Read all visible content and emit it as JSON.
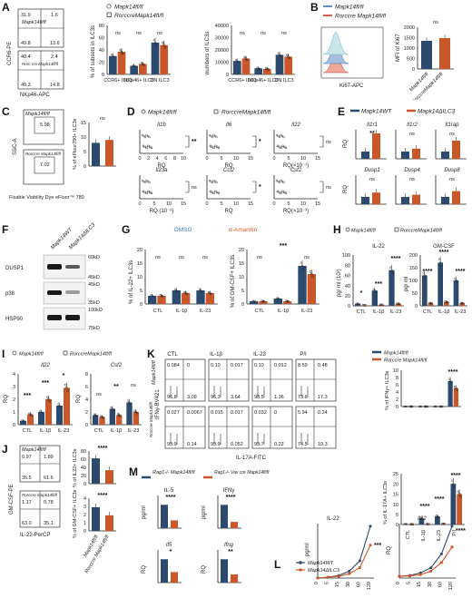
{
  "colors": {
    "ctl": "#2c4a6e",
    "ko": "#c9572a",
    "ctl_light": "#6d8fb8",
    "hist_blue": "#7a9cc6",
    "hist_red": "#d98a7a",
    "hist_ko": "#9fd0d8",
    "dmso": "#3b7dc4",
    "amanitin": "#d85a2a"
  },
  "panels": {
    "A": {
      "label": "A",
      "flow": {
        "yaxis": "CCR6-PE",
        "xaxis": "NKp46-APC",
        "top": {
          "name": "Mapk14fl/fl",
          "q_tl": "31.9",
          "q_tr": "1.6",
          "q_bl": "49.8",
          "q_br": "13.6"
        },
        "bottom": {
          "name": "Rorc cre Mapk14fl/fl",
          "q_tl": "40.4",
          "q_tr": "2.4",
          "q_bl": "40.3",
          "q_br": "14.8"
        }
      },
      "legend": [
        "Mapk14fl/fl",
        "RorccreMapk14fl/fl"
      ],
      "chart1": {
        "ylabel": "% of subsets in ILC3s",
        "yticks": [
          "0",
          "20",
          "40",
          "60",
          "80"
        ],
        "cats": [
          "CCR6+ ILC3",
          "NKp46+ ILC3",
          "DN ILC3"
        ],
        "sig": [
          "ns",
          "ns",
          "ns"
        ]
      },
      "chart2": {
        "ylabel": "numbers of ILC3s",
        "yticks": [
          "0",
          "10000",
          "20000",
          "30000",
          "40000"
        ],
        "cats": [
          "CCR6+ ILC3",
          "NKp46+ ILC3",
          "DN ILC3"
        ],
        "sig": [
          "ns",
          "ns",
          "ns"
        ]
      }
    },
    "B": {
      "label": "B",
      "legend": [
        "Mapk14fl/fl",
        "Rorccre Mapk14fl/fl"
      ],
      "xaxis": "Ki67-APC",
      "ylabel": "MFI of Ki67",
      "yticks": [
        "0",
        "500",
        "1000",
        "1500",
        "2000"
      ],
      "sig": "ns",
      "xcats": [
        "Mapk14fl/fl",
        "RorccreMapk14fl/fl"
      ]
    },
    "C": {
      "label": "C",
      "top_name": "Mapk14fl/fl",
      "top_val": "5.98",
      "bottom_name": "Rorccre Mapk14fl/fl",
      "bottom_val": "7.02",
      "yaxis": "SSC-A",
      "xaxis": "Fixable Viability Dye eFluor™ 780",
      "ylabel": "% of eFlour780+ ILC3s",
      "yticks": [
        "0",
        "5",
        "10",
        "15"
      ],
      "sig": "ns"
    },
    "D": {
      "label": "D",
      "legend": [
        "Mapk14fl/fl",
        "RorccreMapk14fl/fl"
      ],
      "genes": [
        {
          "name": "Il1b",
          "x": "RQ",
          "sig": "**"
        },
        {
          "name": "Il6",
          "x": "RQ",
          "sig": "*"
        },
        {
          "name": "Il22",
          "x": "RQ(×10⁻¹)",
          "sig": "ns"
        },
        {
          "name": "Il23a",
          "x": "RQ (10⁻²)",
          "sig": "ns"
        },
        {
          "name": "Ccl2",
          "x": "RQ",
          "sig": "*"
        },
        {
          "name": "Csf2",
          "x": "RQ(×10⁻³)",
          "sig": "ns"
        }
      ],
      "ticks1": [
        "0",
        "2",
        "4",
        "6",
        "8",
        "10"
      ],
      "ticks2": [
        "0",
        "5",
        "10",
        "15"
      ]
    },
    "E": {
      "label": "E",
      "legend": [
        "Mapk14WT",
        "Mapk14ΔILC3"
      ],
      "genes": [
        {
          "name": "Il1r1",
          "sig": "**"
        },
        {
          "name": "Il1r2",
          "sig": "ns"
        },
        {
          "name": "Il1rap",
          "sig": "ns"
        },
        {
          "name": "Dusp1",
          "sig": "ns"
        },
        {
          "name": "Dusp4",
          "sig": "ns"
        },
        {
          "name": "Dusp8",
          "sig": "ns"
        }
      ],
      "ylabel": "RQ"
    },
    "F": {
      "label": "F",
      "lanes": [
        "Mapk14WT",
        "Mapk14ΔILC3"
      ],
      "rows": [
        "DUSP1",
        "p38",
        "HSP90"
      ],
      "markers": [
        "60kD",
        "45kD",
        "45kD",
        "35kD",
        "100kD",
        "75kD"
      ]
    },
    "G": {
      "label": "G",
      "legend": [
        "DMSO",
        "α-Amanitin"
      ],
      "chart1": {
        "ylabel": "% of IL-22+ ILC3s",
        "yticks": [
          "0",
          "5",
          "10",
          "15",
          "20"
        ],
        "cats": [
          "CTL",
          "IL-1β",
          "IL-23"
        ],
        "sig": [
          "ns",
          "ns",
          "ns"
        ]
      },
      "chart2": {
        "ylabel": "% of GM-CSF+ ILC3s",
        "yticks": [
          "0",
          "5",
          "10",
          "15",
          "20"
        ],
        "cats": [
          "CTL",
          "IL-1β",
          "IL-23"
        ],
        "sig": [
          "ns",
          "***",
          "ns"
        ]
      }
    },
    "H": {
      "label": "H",
      "legend": [
        "Mapk14fl/fl",
        "RorccreMapk14fl/fl"
      ],
      "chart1": {
        "title": "IL-22",
        "ylabel": "pg/ ml (10²)",
        "yticks": [
          "0",
          "20",
          "40",
          "60",
          "80",
          "100"
        ],
        "cats": [
          "CTL",
          "IL-1β",
          "IL-23"
        ],
        "sig": [
          "*",
          "***",
          "****"
        ]
      },
      "chart2": {
        "title": "GM-CSF",
        "ylabel": "pg/ ml",
        "yticks": [
          "0",
          "50",
          "100",
          "150",
          "200"
        ],
        "cats": [
          "CTL",
          "IL-1β",
          "IL-23"
        ],
        "sig": [
          "****",
          "****",
          "****"
        ]
      }
    },
    "I": {
      "label": "I",
      "legend": [
        "Mapk14fl/fl",
        "RorccreMapk14fl/fl"
      ],
      "chart1": {
        "title": "Il22",
        "ylabel": "RQ",
        "yticks": [
          "0",
          "1",
          "2",
          "3",
          "4"
        ],
        "cats": [
          "CTL",
          "IL-1β",
          "IL-23"
        ],
        "sig": [
          "***",
          "***",
          "*"
        ]
      },
      "chart2": {
        "title": "Csf2",
        "ylabel": "RQ",
        "yticks": [
          "0",
          "2",
          "4",
          "6",
          "8"
        ],
        "cats": [
          "CTL",
          "IL-1β",
          "IL-23"
        ],
        "sig": [
          "ns",
          "**",
          "ns"
        ]
      }
    },
    "J": {
      "label": "J",
      "top_name": "Mapk14fl/fl",
      "bottom_name": "Rorccre Mapk14fl/fl",
      "yaxis": "GM-CSF-PE",
      "xaxis": "IL-22-PerCP",
      "top_q": [
        "0.97",
        "1.89",
        "35.5",
        "61.6"
      ],
      "bottom_q": [
        "1.17",
        "0.78",
        "63.0",
        "35.1"
      ],
      "chart1": {
        "ylabel": "% of IL22+ ILC3s",
        "yticks": [
          "0",
          "20",
          "40",
          "60",
          "80"
        ],
        "sig": "****"
      },
      "chart2": {
        "ylabel": "% of GM-CSF+ ILC3s",
        "yticks": [
          "0",
          "1",
          "2",
          "3",
          "4"
        ],
        "sig": "****"
      },
      "xcats": [
        "Mapk14fl/fl",
        "Rorccre Mapk14fl/fl"
      ]
    },
    "K": {
      "label": "K",
      "cols": [
        "CTL",
        "IL-1β",
        "IL-23",
        "P/I"
      ],
      "row1": "Mapk14fl/fl",
      "row2": "Rorccre Mapk14fl/fl",
      "yaxis": "IFNγ-BV421",
      "xaxis": "IL-17A-FITC",
      "q1": [
        [
          "0.084",
          "0",
          "96.8",
          "3.09"
        ],
        [
          "0.10",
          "0.017",
          "96.2",
          "3.64"
        ],
        [
          "0.10",
          "0.012",
          "98.5",
          "1.36"
        ],
        [
          "8.59",
          "0.48",
          "73.6",
          "17.3"
        ]
      ],
      "q2": [
        [
          "0.027",
          "0.0067",
          "99.9",
          "0.14"
        ],
        [
          "0.015",
          "0.017",
          "99.9",
          "0.052"
        ],
        [
          "0.032",
          "0",
          "99.7",
          "0.22"
        ],
        [
          "5.94",
          "0.24",
          "74.5",
          "19.3"
        ]
      ],
      "legend": [
        "Mapk14fl/fl",
        "Rorccre Mapk14fl/fl"
      ],
      "chart1": {
        "ylabel": "% of IFNγ+ ILC3s",
        "yticks": [
          "0",
          "2",
          "4",
          "6",
          "8",
          "10"
        ],
        "sig": "****"
      },
      "chart2": {
        "ylabel": "% of IL-17A+ ILC3s",
        "yticks": [
          "0",
          "5",
          "10",
          "15",
          "20",
          "25"
        ],
        "cats": [
          "CTL",
          "IL-1β",
          "IL-23",
          "P/I"
        ],
        "sig": [
          "****",
          "****",
          "****"
        ]
      }
    },
    "L": {
      "label": "L",
      "legend": [
        "Mapk14WT",
        "Mapk14ΔILC3"
      ],
      "chart1": {
        "title": "IL-22",
        "ylabel": "pg/ml",
        "xticks": [
          "0",
          "5",
          "15",
          "30",
          "60",
          "120"
        ],
        "sig": "***"
      },
      "chart2": {
        "title": "Il22",
        "ylabel": "RQ",
        "xticks": [
          "0",
          "5",
          "15",
          "30",
          "60",
          "120"
        ],
        "sig": "****"
      }
    },
    "M": {
      "label": "M",
      "legend": [
        "Rag1-/- Mapk14fl/fl",
        "Rag1-/- Vav cre Mapk14fl/fl"
      ],
      "charts": [
        {
          "title": "IL-5",
          "ylabel": "pg/ml",
          "sig": "****"
        },
        {
          "title": "IFNγ",
          "ylabel": "pg/ml",
          "sig": "****"
        },
        {
          "title": "Il5",
          "ylabel": "RQ",
          "sig": "*"
        },
        {
          "title": "Ifng",
          "ylabel": "RQ",
          "sig": "**"
        }
      ]
    }
  },
  "chart_data": [
    {
      "panel": "A-left",
      "type": "bar",
      "categories": [
        "CCR6+ ILC3",
        "NKp46+ ILC3",
        "DN ILC3"
      ],
      "series": [
        {
          "name": "Mapk14fl/fl",
          "values": [
            30,
            14,
            52
          ]
        },
        {
          "name": "RorccreMapk14fl/fl",
          "values": [
            37,
            17,
            48
          ]
        }
      ],
      "ylim": [
        0,
        80
      ]
    },
    {
      "panel": "A-right",
      "type": "bar",
      "categories": [
        "CCR6+ ILC3",
        "NKp46+ ILC3",
        "DN ILC3"
      ],
      "series": [
        {
          "name": "Mapk14fl/fl",
          "values": [
            11000,
            5000,
            16000
          ]
        },
        {
          "name": "RorccreMapk14fl/fl",
          "values": [
            13000,
            4500,
            14500
          ]
        }
      ],
      "ylim": [
        0,
        40000
      ]
    },
    {
      "panel": "B",
      "type": "bar",
      "categories": [
        "Mapk14fl/fl",
        "RorccreMapk14fl/fl"
      ],
      "values": [
        1350,
        1480
      ],
      "ylim": [
        0,
        2000
      ]
    },
    {
      "panel": "C",
      "type": "bar",
      "categories": [
        "Mapk14fl/fl",
        "RorccreMapk14fl/fl"
      ],
      "values": [
        8,
        9
      ],
      "ylim": [
        0,
        15
      ]
    },
    {
      "panel": "E",
      "type": "bar",
      "categories": [
        "Il1r1",
        "Il1r2",
        "Il1rap",
        "Dusp1",
        "Dusp4",
        "Dusp8"
      ],
      "series": [
        {
          "name": "Mapk14WT",
          "values": [
            1,
            1,
            1,
            1,
            1,
            1
          ]
        },
        {
          "name": "Mapk14ΔILC3",
          "values": [
            3.5,
            1.4,
            2.5,
            1.6,
            1.3,
            1.8
          ]
        }
      ]
    },
    {
      "panel": "G-left",
      "type": "bar",
      "categories": [
        "CTL",
        "IL-1β",
        "IL-23"
      ],
      "series": [
        {
          "name": "DMSO",
          "values": [
            3,
            5,
            5
          ]
        },
        {
          "name": "α-Amanitin",
          "values": [
            3,
            4,
            4
          ]
        }
      ],
      "ylim": [
        0,
        20
      ]
    },
    {
      "panel": "G-right",
      "type": "bar",
      "categories": [
        "CTL",
        "IL-1β",
        "IL-23"
      ],
      "series": [
        {
          "name": "DMSO",
          "values": [
            1,
            2,
            14
          ]
        },
        {
          "name": "α-Amanitin",
          "values": [
            1,
            1,
            11
          ]
        }
      ],
      "ylim": [
        0,
        20
      ]
    },
    {
      "panel": "H-left",
      "type": "bar",
      "categories": [
        "CTL",
        "IL-1β",
        "IL-23"
      ],
      "series": [
        {
          "name": "Mapk14fl/fl",
          "values": [
            4,
            30,
            70
          ]
        },
        {
          "name": "RorccreMapk14fl/fl",
          "values": [
            1,
            2,
            4
          ]
        }
      ],
      "ylim": [
        0,
        100
      ]
    },
    {
      "panel": "H-right",
      "type": "bar",
      "categories": [
        "CTL",
        "IL-1β",
        "IL-23"
      ],
      "series": [
        {
          "name": "Mapk14fl/fl",
          "values": [
            120,
            170,
            100
          ]
        },
        {
          "name": "RorccreMapk14fl/fl",
          "values": [
            10,
            15,
            10
          ]
        }
      ],
      "ylim": [
        0,
        200
      ]
    },
    {
      "panel": "I-left",
      "type": "bar",
      "categories": [
        "CTL",
        "IL-1β",
        "IL-23"
      ],
      "series": [
        {
          "name": "Mapk14fl/fl",
          "values": [
            0.3,
            1.0,
            1.5
          ]
        },
        {
          "name": "RorccreMapk14fl/fl",
          "values": [
            0.8,
            2.0,
            2.9
          ]
        }
      ],
      "ylim": [
        0,
        4
      ]
    },
    {
      "panel": "I-right",
      "type": "bar",
      "categories": [
        "CTL",
        "IL-1β",
        "IL-23"
      ],
      "series": [
        {
          "name": "Mapk14fl/fl",
          "values": [
            1.5,
            2.5,
            3.5
          ]
        },
        {
          "name": "RorccreMapk14fl/fl",
          "values": [
            1.2,
            1.5,
            2.0
          ]
        }
      ],
      "ylim": [
        0,
        8
      ]
    },
    {
      "panel": "J-top",
      "type": "bar",
      "categories": [
        "Mapk14fl/fl",
        "Rorccre Mapk14fl/fl"
      ],
      "values": [
        62,
        33
      ],
      "ylim": [
        0,
        80
      ]
    },
    {
      "panel": "J-bottom",
      "type": "bar",
      "categories": [
        "Mapk14fl/fl",
        "Rorccre Mapk14fl/fl"
      ],
      "values": [
        2.9,
        1.9
      ],
      "ylim": [
        0,
        4
      ]
    },
    {
      "panel": "K-top",
      "type": "bar",
      "categories": [
        "CTL",
        "IL-1β",
        "IL-23",
        "P/I"
      ],
      "series": [
        {
          "name": "Mapk14fl/fl",
          "values": [
            0,
            0,
            0,
            7
          ]
        },
        {
          "name": "Rorccre Mapk14fl/fl",
          "values": [
            0,
            0,
            0,
            5
          ]
        }
      ],
      "ylim": [
        0,
        10
      ]
    },
    {
      "panel": "K-bottom",
      "type": "bar",
      "categories": [
        "CTL",
        "IL-1β",
        "IL-23",
        "P/I"
      ],
      "series": [
        {
          "name": "Mapk14fl/fl",
          "values": [
            0.2,
            3,
            4,
            20
          ]
        },
        {
          "name": "Rorccre Mapk14fl/fl",
          "values": [
            0.1,
            0.2,
            0.3,
            15
          ]
        }
      ],
      "ylim": [
        0,
        25
      ]
    },
    {
      "panel": "L-left",
      "type": "line",
      "x": [
        0,
        5,
        15,
        30,
        60,
        120
      ],
      "series": [
        {
          "name": "Mapk14WT",
          "values": [
            0,
            1,
            3,
            8,
            20,
            60
          ]
        },
        {
          "name": "Mapk14ΔILC3",
          "values": [
            0,
            1,
            2,
            5,
            12,
            38
          ]
        }
      ]
    },
    {
      "panel": "L-right",
      "type": "line",
      "x": [
        0,
        5,
        15,
        30,
        60,
        120
      ],
      "series": [
        {
          "name": "Mapk14WT",
          "values": [
            1,
            1.5,
            3,
            6,
            14,
            30
          ]
        },
        {
          "name": "Mapk14ΔILC3",
          "values": [
            1,
            1.2,
            2,
            4,
            9,
            18
          ]
        }
      ]
    }
  ]
}
